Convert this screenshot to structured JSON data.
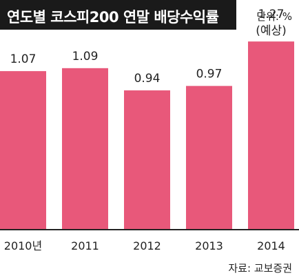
{
  "title": "연도별 코스피200 연말 배당수익률",
  "unit": "단위: %",
  "source": "자료: 교보증권",
  "colors": {
    "bar": "#e8587a",
    "title_bg": "#1a1a1a",
    "axis": "#222222"
  },
  "chart_data": {
    "type": "bar",
    "title": "연도별 코스피200 연말 배당수익률",
    "categories": [
      "2010년",
      "2011",
      "2012",
      "2013",
      "2014"
    ],
    "values": [
      1.07,
      1.09,
      0.94,
      0.97,
      1.27
    ],
    "value_labels": [
      "1.07",
      "1.09",
      "0.94",
      "0.97",
      "1.27"
    ],
    "annotations": [
      {
        "category": "2014",
        "text": "(예상)"
      }
    ],
    "ylim": [
      0,
      1.55
    ],
    "grid": false,
    "unit": "%"
  }
}
